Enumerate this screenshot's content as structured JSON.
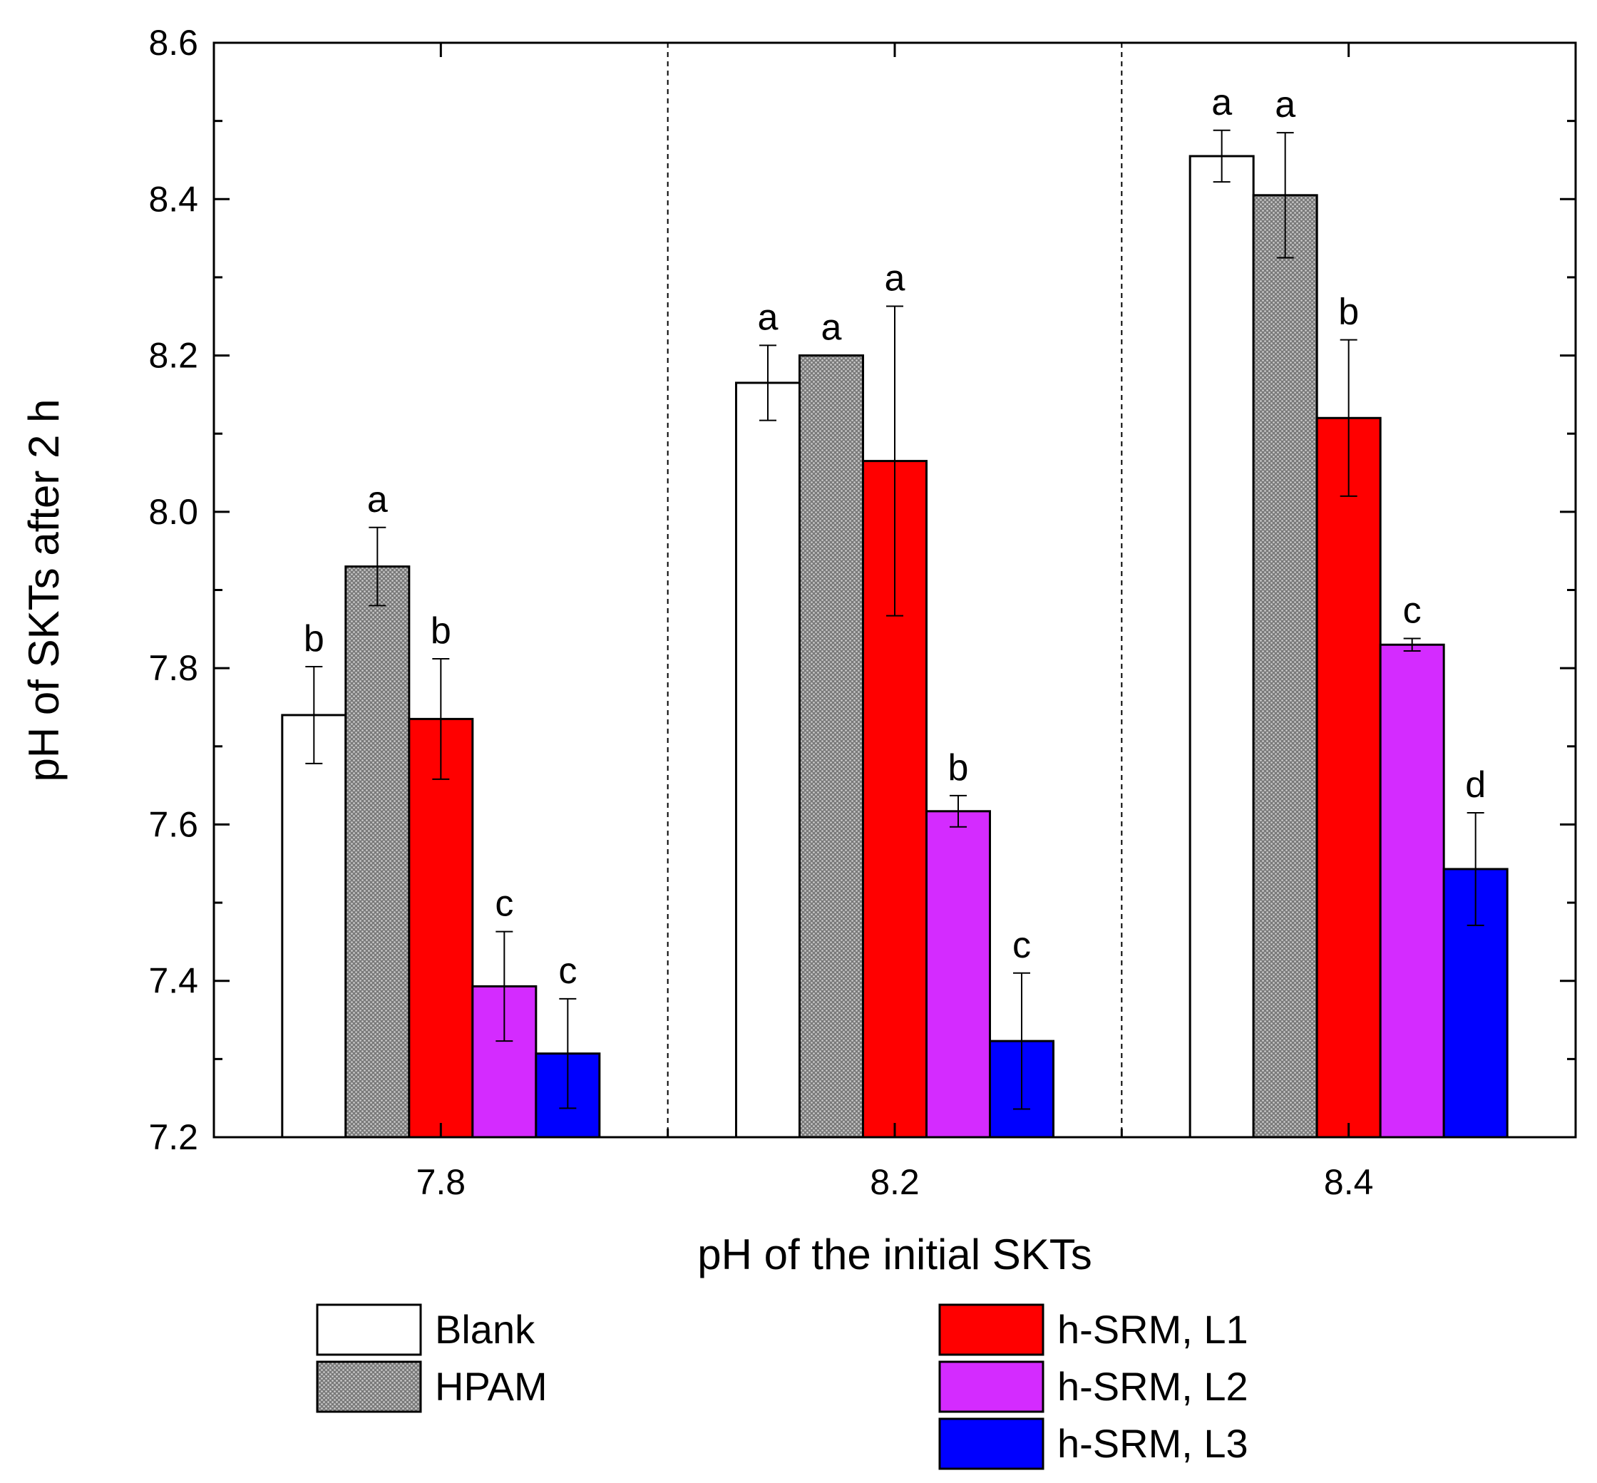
{
  "chart_data": {
    "type": "bar",
    "title": "",
    "xlabel": "pH of the initial SKTs",
    "ylabel": "pH of SKTs after 2 h",
    "ylim": [
      7.2,
      8.6
    ],
    "yticks": [
      "7.2",
      "7.4",
      "7.6",
      "7.8",
      "8.0",
      "8.2",
      "8.4",
      "8.6"
    ],
    "categories": [
      "7.8",
      "8.2",
      "8.4"
    ],
    "series": [
      {
        "name": "Blank",
        "color": "#ffffff",
        "pattern": "none",
        "values": [
          7.74,
          8.165,
          8.455
        ],
        "errors": [
          0.062,
          0.048,
          0.033
        ],
        "labels": [
          "b",
          "a",
          "a"
        ]
      },
      {
        "name": "HPAM",
        "color": "#8c8c8c",
        "pattern": "dots",
        "values": [
          7.93,
          8.2,
          8.405
        ],
        "errors": [
          0.05,
          0.0,
          0.08
        ],
        "labels": [
          "a",
          "a",
          "a"
        ]
      },
      {
        "name": "h-SRM, L1",
        "color": "#ff0000",
        "pattern": "none",
        "values": [
          7.735,
          8.065,
          8.12
        ],
        "errors": [
          0.077,
          0.198,
          0.1
        ],
        "labels": [
          "b",
          "a",
          "b"
        ]
      },
      {
        "name": "h-SRM, L2",
        "color": "#d42bff",
        "pattern": "none",
        "values": [
          7.393,
          7.617,
          7.83
        ],
        "errors": [
          0.07,
          0.02,
          0.008
        ],
        "labels": [
          "c",
          "b",
          "c"
        ]
      },
      {
        "name": "h-SRM, L3",
        "color": "#0000ff",
        "pattern": "none",
        "values": [
          7.307,
          7.323,
          7.543
        ],
        "errors": [
          0.07,
          0.087,
          0.072
        ],
        "labels": [
          "c",
          "c",
          "d"
        ]
      }
    ],
    "grid": false,
    "legend_position": "bottom",
    "separators": "dashed vertical lines between groups"
  }
}
